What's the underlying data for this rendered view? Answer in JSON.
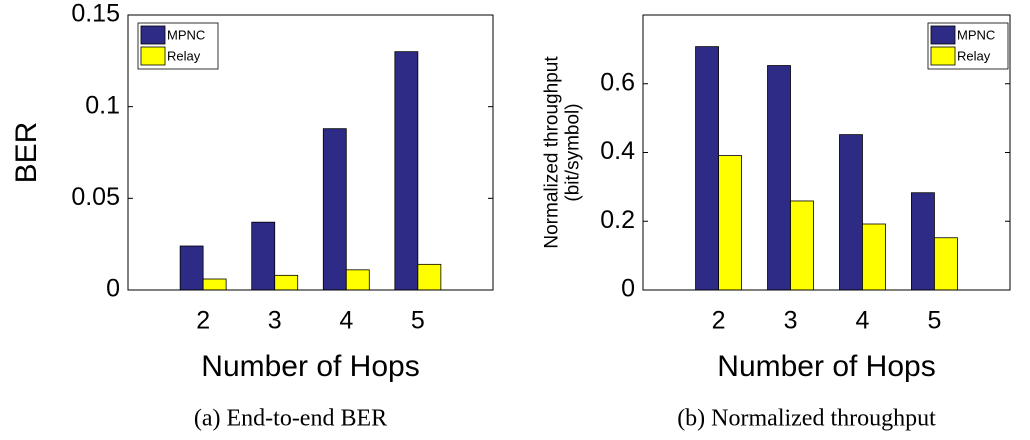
{
  "chart_data": [
    {
      "type": "bar",
      "categories": [
        "2",
        "3",
        "4",
        "5"
      ],
      "series": [
        {
          "name": "MPNC",
          "color": "#2e2b87",
          "values": [
            0.024,
            0.037,
            0.088,
            0.13
          ]
        },
        {
          "name": "Relay",
          "color": "#ffff00",
          "values": [
            0.006,
            0.008,
            0.011,
            0.014
          ]
        }
      ],
      "ylim": [
        0,
        0.15
      ],
      "yticks": [
        0,
        0.05,
        0.1,
        0.15
      ],
      "xlabel": "Number of Hops",
      "ylabel": [
        "BER"
      ],
      "legend": "upper left",
      "caption": "(a) End-to-end BER"
    },
    {
      "type": "bar",
      "categories": [
        "2",
        "3",
        "4",
        "5"
      ],
      "series": [
        {
          "name": "MPNC",
          "color": "#2e2b87",
          "values": [
            0.708,
            0.653,
            0.452,
            0.283
          ]
        },
        {
          "name": "Relay",
          "color": "#ffff00",
          "values": [
            0.391,
            0.259,
            0.192,
            0.152
          ]
        }
      ],
      "ylim": [
        0,
        0.8
      ],
      "yticks": [
        0,
        0.2,
        0.4,
        0.6
      ],
      "xlabel": "Number of Hops",
      "ylabel": [
        "Normalized throughput",
        "(bit/symbol)"
      ],
      "legend": "upper right",
      "caption": "(b) Normalized throughput"
    }
  ]
}
